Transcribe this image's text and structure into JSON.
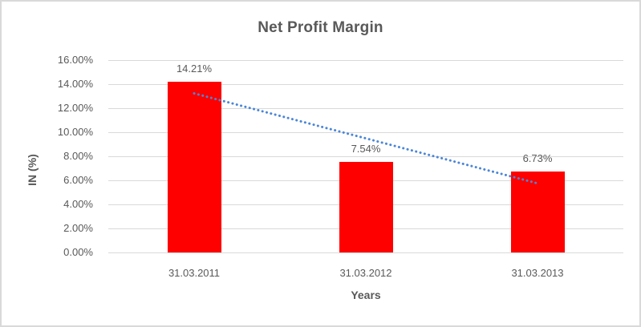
{
  "chart_data": {
    "type": "bar",
    "title": "Net Profit Margin",
    "xlabel": "Years",
    "ylabel": "IN (%)",
    "categories": [
      "31.03.2011",
      "31.03.2012",
      "31.03.2013"
    ],
    "values": [
      14.21,
      7.54,
      6.73
    ],
    "data_labels": [
      "14.21%",
      "7.54%",
      "6.73%"
    ],
    "ylim": [
      0,
      16
    ],
    "ytick_step": 2,
    "ytick_labels": [
      "0.00%",
      "2.00%",
      "4.00%",
      "6.00%",
      "8.00%",
      "10.00%",
      "12.00%",
      "14.00%",
      "16.00%"
    ],
    "grid": true,
    "legend": false,
    "trendline": {
      "type": "linear",
      "style": "dotted",
      "endpoints_pct": [
        13.23,
        5.75
      ]
    },
    "colors": {
      "bar": "#ff0000",
      "trendline": "#4a86d8",
      "text": "#595959",
      "gridline": "#d9d9d9",
      "frame_border": "#d9d9d9",
      "background": "#ffffff"
    }
  }
}
